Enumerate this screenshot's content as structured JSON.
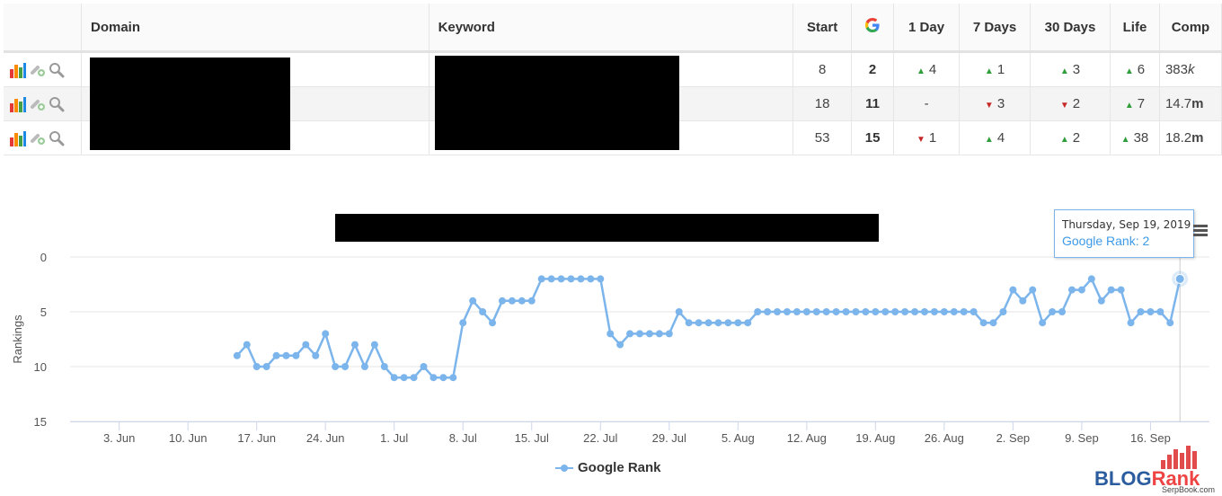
{
  "table": {
    "headers": [
      "Domain",
      "Keyword",
      "Start",
      "1 Day",
      "7 Days",
      "30 Days",
      "Life",
      "Comp"
    ],
    "google_header_icon": "google-g-icon",
    "rows": [
      {
        "start": "8",
        "google": "2",
        "day1": {
          "dir": "up",
          "val": "4"
        },
        "day7": {
          "dir": "up",
          "val": "1"
        },
        "day30": {
          "dir": "up",
          "val": "3"
        },
        "life": {
          "dir": "up",
          "val": "6"
        },
        "comp_num": "383",
        "comp_unit": "k"
      },
      {
        "start": "18",
        "google": "11",
        "day1": {
          "dir": "none",
          "val": "-"
        },
        "day7": {
          "dir": "down",
          "val": "3"
        },
        "day30": {
          "dir": "down",
          "val": "2"
        },
        "life": {
          "dir": "up",
          "val": "7"
        },
        "comp_num": "14.7",
        "comp_unit": "m"
      },
      {
        "start": "53",
        "google": "15",
        "day1": {
          "dir": "down",
          "val": "1"
        },
        "day7": {
          "dir": "up",
          "val": "4"
        },
        "day30": {
          "dir": "up",
          "val": "2"
        },
        "life": {
          "dir": "up",
          "val": "38"
        },
        "comp_num": "18.2",
        "comp_unit": "m"
      }
    ],
    "row_icons": [
      "bar-chart-icon",
      "add-link-icon",
      "magnifier-icon"
    ]
  },
  "chart_data": {
    "type": "line",
    "ylabel": "Rankings",
    "y_reversed": true,
    "ylim": [
      0,
      15
    ],
    "yticks": [
      0,
      5,
      10,
      15
    ],
    "xlim": [
      "2019-05-29",
      "2019-09-22"
    ],
    "xticks": [
      "3. Jun",
      "10. Jun",
      "17. Jun",
      "24. Jun",
      "1. Jul",
      "8. Jul",
      "15. Jul",
      "22. Jul",
      "29. Jul",
      "5. Aug",
      "12. Aug",
      "19. Aug",
      "26. Aug",
      "2. Sep",
      "9. Sep",
      "16. Sep"
    ],
    "series": [
      {
        "name": "Google Rank",
        "color": "#7cb5ec",
        "x": [
          "2019-06-15",
          "2019-06-16",
          "2019-06-17",
          "2019-06-18",
          "2019-06-19",
          "2019-06-20",
          "2019-06-21",
          "2019-06-22",
          "2019-06-23",
          "2019-06-24",
          "2019-06-25",
          "2019-06-26",
          "2019-06-27",
          "2019-06-28",
          "2019-06-29",
          "2019-06-30",
          "2019-07-01",
          "2019-07-02",
          "2019-07-03",
          "2019-07-04",
          "2019-07-05",
          "2019-07-06",
          "2019-07-07",
          "2019-07-08",
          "2019-07-09",
          "2019-07-10",
          "2019-07-11",
          "2019-07-12",
          "2019-07-13",
          "2019-07-14",
          "2019-07-15",
          "2019-07-16",
          "2019-07-17",
          "2019-07-18",
          "2019-07-19",
          "2019-07-20",
          "2019-07-21",
          "2019-07-22",
          "2019-07-23",
          "2019-07-24",
          "2019-07-25",
          "2019-07-26",
          "2019-07-27",
          "2019-07-28",
          "2019-07-29",
          "2019-07-30",
          "2019-07-31",
          "2019-08-01",
          "2019-08-02",
          "2019-08-03",
          "2019-08-04",
          "2019-08-05",
          "2019-08-06",
          "2019-08-07",
          "2019-08-08",
          "2019-08-09",
          "2019-08-10",
          "2019-08-11",
          "2019-08-12",
          "2019-08-13",
          "2019-08-14",
          "2019-08-15",
          "2019-08-16",
          "2019-08-17",
          "2019-08-18",
          "2019-08-19",
          "2019-08-20",
          "2019-08-21",
          "2019-08-22",
          "2019-08-23",
          "2019-08-24",
          "2019-08-25",
          "2019-08-26",
          "2019-08-27",
          "2019-08-28",
          "2019-08-29",
          "2019-08-30",
          "2019-08-31",
          "2019-09-01",
          "2019-09-02",
          "2019-09-03",
          "2019-09-04",
          "2019-09-05",
          "2019-09-06",
          "2019-09-07",
          "2019-09-08",
          "2019-09-09",
          "2019-09-10",
          "2019-09-11",
          "2019-09-12",
          "2019-09-13",
          "2019-09-14",
          "2019-09-15",
          "2019-09-16",
          "2019-09-17",
          "2019-09-18",
          "2019-09-19"
        ],
        "y": [
          9,
          8,
          10,
          10,
          9,
          9,
          9,
          8,
          9,
          7,
          10,
          10,
          8,
          10,
          8,
          10,
          11,
          11,
          11,
          10,
          11,
          11,
          11,
          6,
          4,
          5,
          6,
          4,
          4,
          4,
          4,
          2,
          2,
          2,
          2,
          2,
          2,
          2,
          7,
          8,
          7,
          7,
          7,
          7,
          7,
          5,
          6,
          6,
          6,
          6,
          6,
          6,
          6,
          5,
          5,
          5,
          5,
          5,
          5,
          5,
          5,
          5,
          5,
          5,
          5,
          5,
          5,
          5,
          5,
          5,
          5,
          5,
          5,
          5,
          5,
          5,
          6,
          6,
          5,
          3,
          4,
          3,
          6,
          5,
          5,
          3,
          3,
          2,
          4,
          3,
          3,
          6,
          5,
          5,
          5,
          6,
          2
        ]
      }
    ],
    "legend": "bottom-center"
  },
  "tooltip": {
    "date": "Thursday, Sep 19, 2019",
    "label": "Google Rank: 2"
  },
  "chart_menu_icon": "hamburger-menu-icon",
  "watermark": {
    "brand_a": "BLOG",
    "brand_b": "Rank",
    "site": "SerpBook.com",
    "com": ".com"
  }
}
